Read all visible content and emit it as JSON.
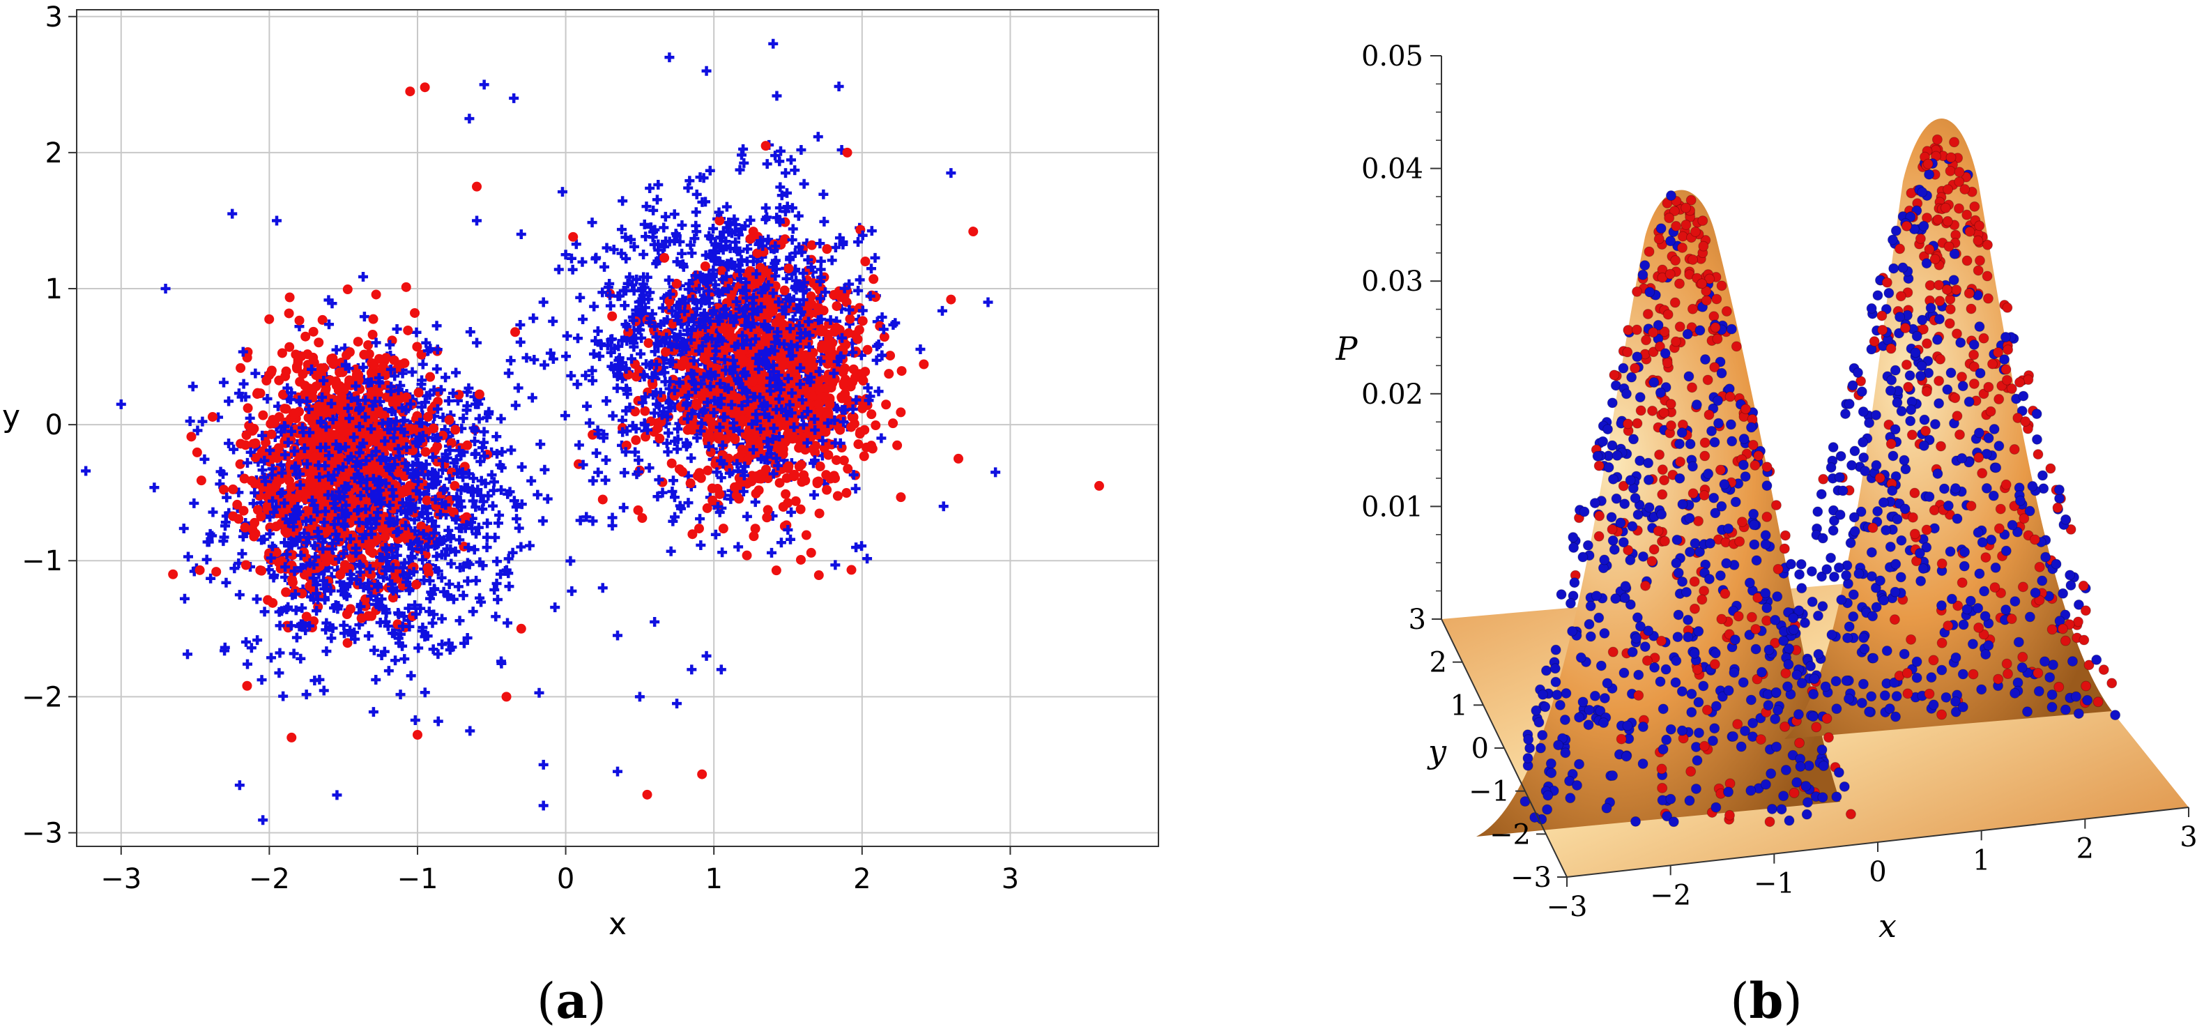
{
  "chart_data": [
    {
      "type": "scatter",
      "panel": "a",
      "caption_letter": "a",
      "xlabel": "x",
      "ylabel": "y",
      "xlim": [
        -3.3,
        4.0
      ],
      "ylim": [
        -3.1,
        3.05
      ],
      "xticks": [
        -3,
        -2,
        -1,
        0,
        1,
        2,
        3
      ],
      "yticks": [
        -3,
        -2,
        -1,
        0,
        1,
        2,
        3
      ],
      "xtick_labels": [
        "−3",
        "−2",
        "−1",
        "0",
        "1",
        "2",
        "3"
      ],
      "ytick_labels": [
        "−3",
        "−2",
        "−1",
        "0",
        "1",
        "2",
        "3"
      ],
      "grid": true,
      "series": [
        {
          "name": "blue",
          "marker": "plus",
          "color": "#1010e0",
          "clusters": [
            {
              "cx": -1.3,
              "cy": -0.6,
              "sx": 0.48,
              "sy": 0.55,
              "n": 1300
            },
            {
              "cx": 1.1,
              "cy": 0.6,
              "sx": 0.45,
              "sy": 0.55,
              "n": 1300
            }
          ],
          "outliers": [
            [
              -2.25,
              1.55
            ],
            [
              -1.95,
              1.5
            ],
            [
              -2.7,
              1.0
            ],
            [
              -3.0,
              0.15
            ],
            [
              -2.2,
              -2.65
            ],
            [
              -0.55,
              2.5
            ],
            [
              -0.35,
              2.4
            ],
            [
              -0.65,
              2.25
            ],
            [
              -0.6,
              1.5
            ],
            [
              -0.3,
              1.4
            ],
            [
              -0.15,
              0.9
            ],
            [
              0.0,
              1.25
            ],
            [
              0.25,
              -1.2
            ],
            [
              0.35,
              -1.55
            ],
            [
              0.5,
              -2.0
            ],
            [
              0.6,
              -1.45
            ],
            [
              0.85,
              -1.8
            ],
            [
              0.95,
              -1.7
            ],
            [
              0.75,
              -2.05
            ],
            [
              -0.15,
              -2.5
            ],
            [
              -0.15,
              -2.8
            ],
            [
              0.35,
              -2.55
            ],
            [
              1.05,
              -1.8
            ],
            [
              2.85,
              0.9
            ],
            [
              2.9,
              -0.35
            ],
            [
              2.6,
              1.85
            ],
            [
              2.55,
              -0.6
            ],
            [
              1.4,
              2.8
            ],
            [
              0.7,
              2.7
            ],
            [
              0.95,
              2.6
            ]
          ]
        },
        {
          "name": "red",
          "marker": "circle",
          "color": "#ee1010",
          "clusters": [
            {
              "cx": -1.5,
              "cy": -0.3,
              "sx": 0.32,
              "sy": 0.45,
              "n": 1100
            },
            {
              "cx": 1.35,
              "cy": 0.3,
              "sx": 0.35,
              "sy": 0.4,
              "n": 1100
            }
          ],
          "outliers": [
            [
              -1.05,
              2.45
            ],
            [
              -0.95,
              2.48
            ],
            [
              -0.6,
              1.75
            ],
            [
              0.05,
              1.38
            ],
            [
              0.25,
              -0.55
            ],
            [
              0.55,
              -2.72
            ],
            [
              0.92,
              -2.57
            ],
            [
              3.6,
              -0.45
            ],
            [
              2.75,
              1.42
            ],
            [
              2.6,
              0.92
            ],
            [
              2.65,
              -0.25
            ],
            [
              -2.65,
              -1.1
            ],
            [
              -2.15,
              -1.92
            ],
            [
              -1.85,
              -2.3
            ],
            [
              -0.4,
              -2.0
            ],
            [
              1.35,
              2.05
            ],
            [
              1.9,
              2.0
            ],
            [
              -0.3,
              -1.5
            ],
            [
              -1.0,
              -2.28
            ]
          ]
        }
      ]
    },
    {
      "type": "surface3d",
      "panel": "b",
      "caption_letter": "b",
      "zlabel": "P",
      "ylabel": "y",
      "xlabel": "x",
      "zticks": [
        0.01,
        0.02,
        0.03,
        0.04,
        0.05
      ],
      "ztick_labels": [
        "0.01",
        "0.02",
        "0.03",
        "0.04",
        "0.05"
      ],
      "xticks": [
        -3,
        -2,
        -1,
        0,
        1,
        2,
        3
      ],
      "xtick_labels": [
        "−3",
        "−2",
        "−1",
        "0",
        "1",
        "2",
        "3"
      ],
      "yticks": [
        3,
        2,
        1,
        0,
        -1,
        -2,
        -3
      ],
      "ytick_labels": [
        "3",
        "2",
        "1",
        "0",
        "−1",
        "−2",
        "−3"
      ],
      "peaks": [
        {
          "x": -1.5,
          "y": 0,
          "height": 0.038
        },
        {
          "x": 1.5,
          "y": 0,
          "height": 0.044
        }
      ],
      "surface_colors": {
        "base": "#e89a48",
        "light": "#fbe7b8",
        "dark": "#9a5a1c"
      },
      "point_colors": {
        "red": "#dd1010",
        "blue": "#1010c8"
      }
    }
  ],
  "captions": {
    "a": "a",
    "b": "b"
  }
}
